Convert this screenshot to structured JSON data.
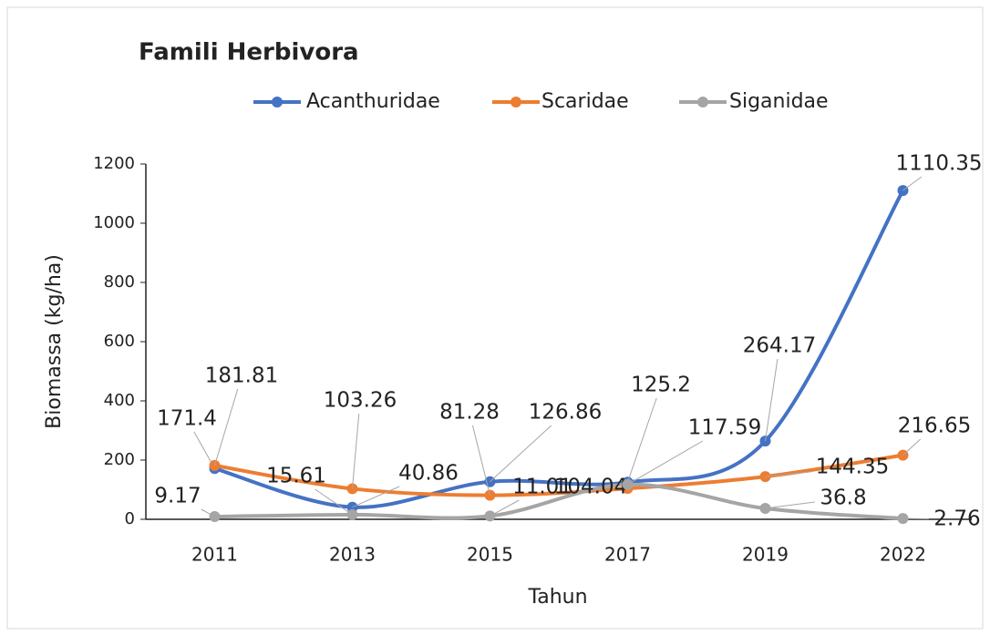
{
  "chart_data": {
    "type": "line",
    "title": "Famili Herbivora",
    "x_label": "Tahun",
    "y_label": "Biomassa (kg/ha)",
    "categories": [
      "2011",
      "2013",
      "2015",
      "2017",
      "2019",
      "2022"
    ],
    "series": [
      {
        "name": "Acanthuridae",
        "color": "#4472c4",
        "values": [
          171.4,
          40.86,
          126.86,
          125.2,
          264.17,
          1110.35
        ]
      },
      {
        "name": "Scaridae",
        "color": "#ed7d31",
        "values": [
          181.81,
          103.26,
          81.28,
          104.04,
          144.35,
          216.65
        ]
      },
      {
        "name": "Siganidae",
        "color": "#a5a5a5",
        "values": [
          9.17,
          15.61,
          11.01,
          117.59,
          36.8,
          2.76
        ]
      }
    ],
    "ylim": [
      0,
      1200
    ],
    "yticks": [
      0,
      200,
      400,
      600,
      800,
      1000,
      1200
    ],
    "smooth": true,
    "legend": "top"
  }
}
